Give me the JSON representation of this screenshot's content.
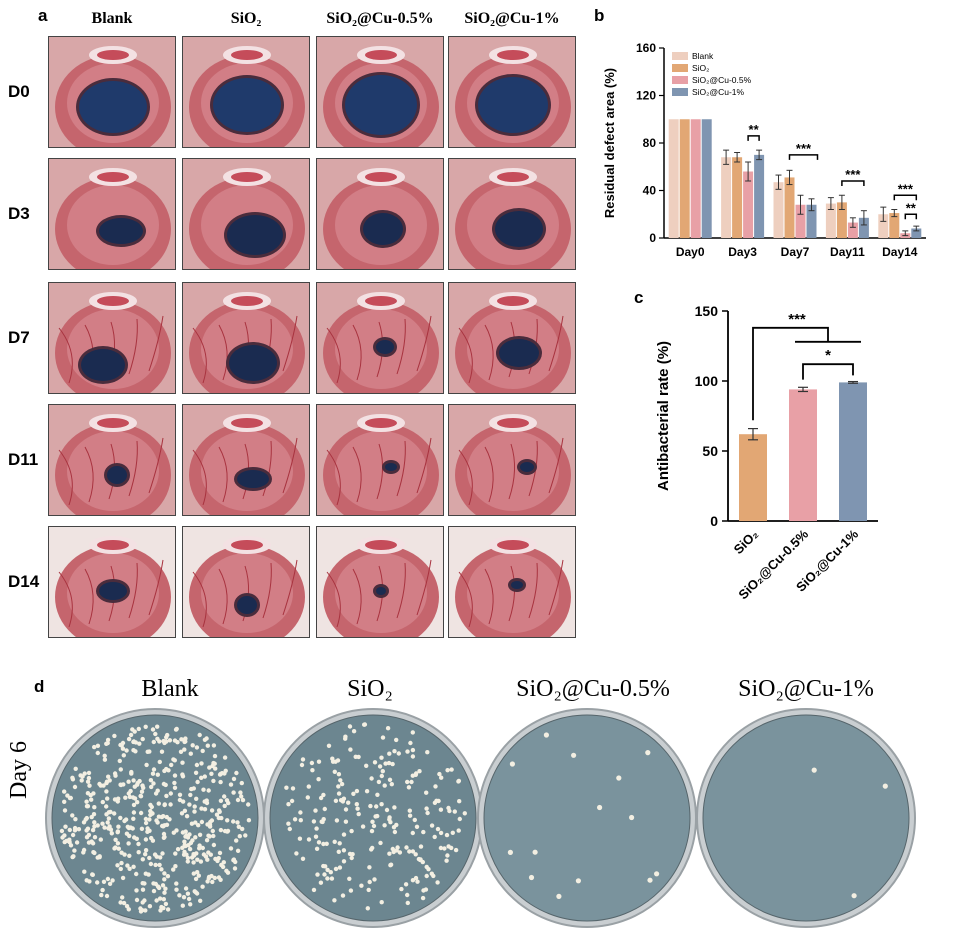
{
  "panel_a": {
    "letter": "a",
    "columns": [
      "Blank",
      "SiO₂",
      "SiO₂@Cu-0.5%",
      "SiO₂@Cu-1%"
    ],
    "rows": [
      "D0",
      "D3",
      "D7",
      "D11",
      "D14"
    ]
  },
  "panel_b": {
    "letter": "b"
  },
  "panel_c": {
    "letter": "c"
  },
  "panel_d": {
    "letter": "d",
    "row_label": "Day 6",
    "labels": [
      "Blank",
      "SiO₂",
      "SiO₂@Cu-0.5%",
      "SiO₂@Cu-1%"
    ]
  },
  "colors": {
    "blank": "#eecfbf",
    "sio2": "#e2a774",
    "cu05": "#e8a0a6",
    "cu1": "#7f95b1"
  },
  "chart_data": [
    {
      "type": "bar",
      "panel": "b",
      "categories": [
        "Day0",
        "Day3",
        "Day7",
        "Day11",
        "Day14"
      ],
      "series": [
        {
          "name": "Blank",
          "values": [
            100,
            68,
            47,
            29,
            20
          ],
          "errors": [
            0,
            6,
            6,
            5,
            6
          ]
        },
        {
          "name": "SiO₂",
          "values": [
            100,
            68,
            51,
            30,
            21
          ],
          "errors": [
            0,
            4,
            6,
            6,
            3
          ]
        },
        {
          "name": "SiO₂@Cu-0.5%",
          "values": [
            100,
            56,
            28,
            13,
            4
          ],
          "errors": [
            0,
            8,
            8,
            4,
            2
          ]
        },
        {
          "name": "SiO₂@Cu-1%",
          "values": [
            100,
            70,
            28,
            17,
            8
          ],
          "errors": [
            0,
            4,
            5,
            6,
            2
          ]
        }
      ],
      "ylabel": "Residual defect area (%)",
      "ylim": [
        0,
        160
      ],
      "yticks": [
        0,
        40,
        80,
        120,
        160
      ],
      "legend": "top-left",
      "annotations": [
        "**",
        "***",
        "***",
        "***",
        "**"
      ]
    },
    {
      "type": "bar",
      "panel": "c",
      "categories": [
        "SiO₂",
        "SiO₂@Cu-0.5%",
        "SiO₂@Cu-1%"
      ],
      "values": [
        62,
        94,
        99
      ],
      "errors": [
        4,
        1.5,
        0.6
      ],
      "ylabel": "Antibacterial rate (%)",
      "ylim": [
        0,
        150
      ],
      "yticks": [
        0,
        50,
        100,
        150
      ],
      "annotations": [
        "***",
        "*"
      ]
    }
  ]
}
